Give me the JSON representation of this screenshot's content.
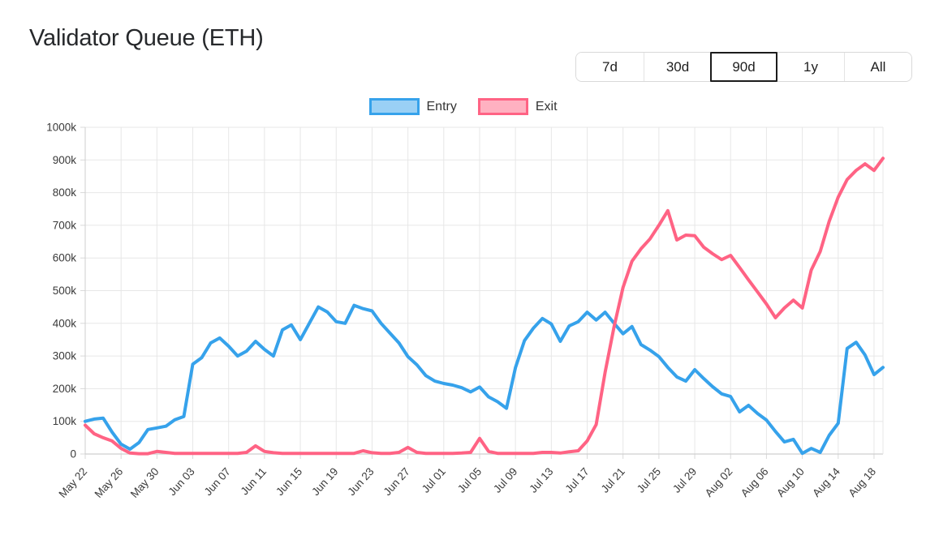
{
  "page": {
    "title": "Validator Queue (ETH)"
  },
  "range_selector": {
    "options": [
      "7d",
      "30d",
      "90d",
      "1y",
      "All"
    ],
    "active": "90d"
  },
  "legend": {
    "items": [
      {
        "label": "Entry",
        "border_color": "#36A2EB",
        "fill_color": "#9AD0F5"
      },
      {
        "label": "Exit",
        "border_color": "#FF6384",
        "fill_color": "#FFB1C1"
      }
    ]
  },
  "chart_data": {
    "type": "line",
    "title": "Validator Queue (ETH)",
    "unit": "values in thousands (k)",
    "grid": true,
    "legend_position": "top",
    "ylim_k": [
      0,
      1000
    ],
    "y_tick_labels": [
      "0",
      "100k",
      "200k",
      "300k",
      "400k",
      "500k",
      "600k",
      "700k",
      "800k",
      "900k",
      "1000k"
    ],
    "x_range": {
      "start": "May 22",
      "end": "Aug 19",
      "points": 90
    },
    "x_tick_every": 4,
    "x_tick_labels": [
      "May 22",
      "May 26",
      "May 30",
      "Jun 03",
      "Jun 07",
      "Jun 11",
      "Jun 15",
      "Jun 19",
      "Jun 23",
      "Jun 27",
      "Jul 01",
      "Jul 05",
      "Jul 09",
      "Jul 13",
      "Jul 17",
      "Jul 21",
      "Jul 25",
      "Jul 29",
      "Aug 02",
      "Aug 06",
      "Aug 10",
      "Aug 14",
      "Aug 18"
    ],
    "series": [
      {
        "name": "Entry",
        "color": "#36A2EB",
        "values_k": [
          100,
          107,
          110,
          67,
          30,
          15,
          35,
          75,
          80,
          85,
          105,
          115,
          275,
          295,
          340,
          355,
          330,
          300,
          315,
          345,
          320,
          300,
          380,
          395,
          350,
          400,
          450,
          435,
          405,
          400,
          455,
          445,
          438,
          400,
          370,
          340,
          298,
          273,
          240,
          223,
          216,
          211,
          203,
          190,
          205,
          175,
          160,
          140,
          265,
          347,
          385,
          415,
          398,
          345,
          392,
          405,
          434,
          410,
          434,
          400,
          368,
          390,
          335,
          318,
          298,
          265,
          236,
          223,
          258,
          231,
          206,
          184,
          176,
          129,
          149,
          124,
          104,
          69,
          37,
          45,
          2,
          17,
          5,
          57,
          94,
          323,
          342,
          303,
          243,
          265
        ]
      },
      {
        "name": "Exit",
        "color": "#FF6384",
        "values_k": [
          88,
          62,
          50,
          40,
          17,
          3,
          1,
          1,
          8,
          5,
          2,
          2,
          2,
          2,
          2,
          2,
          2,
          2,
          5,
          25,
          8,
          4,
          2,
          2,
          2,
          2,
          2,
          2,
          2,
          2,
          2,
          10,
          4,
          2,
          2,
          5,
          20,
          5,
          2,
          2,
          2,
          2,
          3,
          5,
          48,
          8,
          2,
          2,
          2,
          2,
          2,
          5,
          5,
          3,
          7,
          10,
          40,
          90,
          250,
          390,
          510,
          590,
          628,
          658,
          700,
          745,
          655,
          670,
          668,
          633,
          613,
          595,
          608,
          571,
          533,
          496,
          459,
          417,
          447,
          471,
          447,
          563,
          620,
          712,
          786,
          840,
          868,
          888,
          868,
          905
        ]
      }
    ]
  }
}
